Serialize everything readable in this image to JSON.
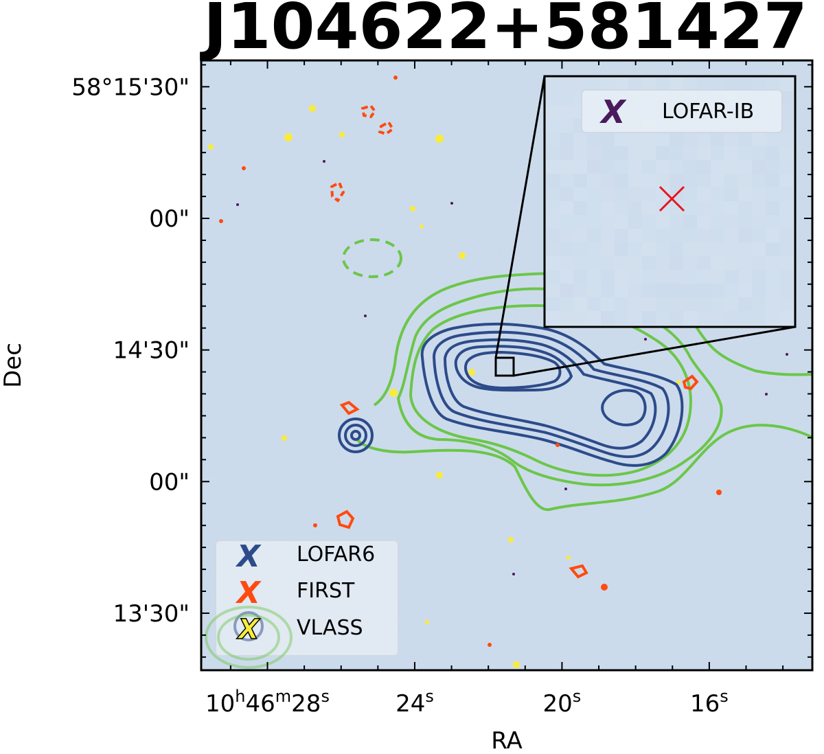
{
  "chart_data": {
    "type": "contour",
    "title": "J104622+581427",
    "xlabel": "RA",
    "ylabel": "Dec",
    "x_ticks": [
      {
        "h": "10",
        "m": "46",
        "s": "28",
        "label_main": "10",
        "label_h": "h",
        "label_m_val": "46",
        "label_m": "m",
        "label_s_val": "28",
        "label_s": "s",
        "ra_sec": 28
      },
      {
        "label_s_val": "24",
        "label_s": "s",
        "ra_sec": 24
      },
      {
        "label_s_val": "20",
        "label_s": "s",
        "ra_sec": 20
      },
      {
        "label_s_val": "16",
        "label_s": "s",
        "ra_sec": 16
      }
    ],
    "y_ticks": [
      {
        "label": "58°15'30\"",
        "dec_arcsec": 90
      },
      {
        "label": "00\"",
        "dec_arcsec": 60
      },
      {
        "label": "14'30\"",
        "dec_arcsec": 30
      },
      {
        "label": "00\"",
        "dec_arcsec": 0
      },
      {
        "label": "13'30\"",
        "dec_arcsec": -30
      }
    ],
    "xlim_ra_sec": [
      29.8,
      13.2
    ],
    "ylim_dec_arcsec": [
      -43,
      96
    ],
    "series": [
      {
        "name": "LOFAR6",
        "color": "#2d4b8a",
        "marker": "X"
      },
      {
        "name": "FIRST",
        "color": "#ff4a0f",
        "marker": "X"
      },
      {
        "name": "VLASS",
        "color": "#f8ec3a",
        "marker": "X"
      }
    ],
    "inset": {
      "legend": [
        {
          "name": "LOFAR-IB",
          "color": "#4a1a5c",
          "marker": "X"
        }
      ],
      "marker_color": "#e8141c",
      "marker": "cross"
    },
    "colors": {
      "background": "#c9d9ea",
      "lofar6": "#2d4b8a",
      "first": "#ff4a0f",
      "vlass": "#f8ec3a",
      "outer_contours": "#6cc64a",
      "inset_bg": "#d7e4f1"
    },
    "legend_location": "lower-left",
    "inset_location": "upper-right"
  }
}
